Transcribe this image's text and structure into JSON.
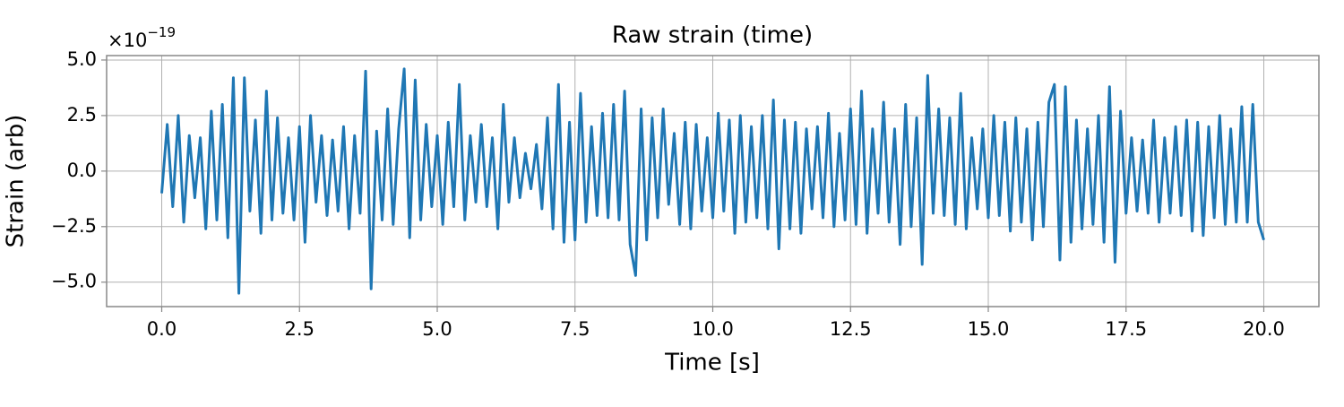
{
  "chart_data": {
    "type": "line",
    "title": "Raw strain (time)",
    "x_label": "Time [s]",
    "y_label": "Strain (arb)",
    "y_offset": {
      "base": "×10",
      "exponent": "−19"
    },
    "color": "#1f77b4",
    "grid": true,
    "xlim": [
      -1.0,
      21.0
    ],
    "ylim": [
      -6.1,
      5.2
    ],
    "xticks": [
      {
        "value": 0,
        "label": "0.0"
      },
      2.5,
      {
        "value": 5,
        "label": "5.0"
      },
      7.5,
      {
        "value": 10,
        "label": "10.0"
      },
      12.5,
      {
        "value": 15,
        "label": "15.0"
      },
      17.5,
      {
        "value": 20,
        "label": "20.0"
      }
    ],
    "yticks": [
      {
        "value": -5,
        "label": "−5.0"
      },
      {
        "value": -2.5,
        "label": "−2.5"
      },
      {
        "value": 0,
        "label": "0.0"
      },
      2.5,
      {
        "value": 5,
        "label": "5.0"
      }
    ],
    "x": [
      0,
      0.1,
      0.2,
      0.3,
      0.4,
      0.5,
      0.6,
      0.7,
      0.8,
      0.9,
      1,
      1.1,
      1.2,
      1.3,
      1.4,
      1.5,
      1.6,
      1.7,
      1.8,
      1.9,
      2,
      2.1,
      2.2,
      2.3,
      2.4,
      2.5,
      2.6,
      2.7,
      2.8,
      2.9,
      3,
      3.1,
      3.2,
      3.3,
      3.4,
      3.5,
      3.6,
      3.7,
      3.8,
      3.9,
      4,
      4.1,
      4.2,
      4.3,
      4.4,
      4.5,
      4.6,
      4.7,
      4.8,
      4.9,
      5,
      5.1,
      5.2,
      5.3,
      5.4,
      5.5,
      5.6,
      5.7,
      5.8,
      5.9,
      6,
      6.1,
      6.2,
      6.3,
      6.4,
      6.5,
      6.6,
      6.7,
      6.8,
      6.9,
      7,
      7.1,
      7.2,
      7.3,
      7.4,
      7.5,
      7.6,
      7.7,
      7.8,
      7.9,
      8,
      8.1,
      8.2,
      8.3,
      8.4,
      8.5,
      8.6,
      8.7,
      8.8,
      8.9,
      9,
      9.1,
      9.2,
      9.3,
      9.4,
      9.5,
      9.6,
      9.7,
      9.8,
      9.9,
      10,
      10.1,
      10.2,
      10.3,
      10.4,
      10.5,
      10.6,
      10.7,
      10.8,
      10.9,
      11,
      11.1,
      11.2,
      11.3,
      11.4,
      11.5,
      11.6,
      11.7,
      11.8,
      11.9,
      12,
      12.1,
      12.2,
      12.3,
      12.4,
      12.5,
      12.6,
      12.7,
      12.8,
      12.9,
      13,
      13.1,
      13.2,
      13.3,
      13.4,
      13.5,
      13.6,
      13.7,
      13.8,
      13.9,
      14,
      14.1,
      14.2,
      14.3,
      14.4,
      14.5,
      14.6,
      14.7,
      14.8,
      14.9,
      15,
      15.1,
      15.2,
      15.3,
      15.4,
      15.5,
      15.6,
      15.7,
      15.8,
      15.9,
      16,
      16.1,
      16.2,
      16.3,
      16.4,
      16.5,
      16.6,
      16.7,
      16.8,
      16.9,
      17,
      17.1,
      17.2,
      17.3,
      17.4,
      17.5,
      17.6,
      17.7,
      17.8,
      17.9,
      18,
      18.1,
      18.2,
      18.3,
      18.4,
      18.5,
      18.6,
      18.7,
      18.8,
      18.9,
      19,
      19.1,
      19.2,
      19.3,
      19.4,
      19.5,
      19.6,
      19.7,
      19.8,
      19.9,
      20
    ],
    "values": [
      -1.0,
      2.1,
      -1.6,
      2.5,
      -2.3,
      1.6,
      -1.2,
      1.5,
      -2.6,
      2.7,
      -2.2,
      3.0,
      -3.0,
      4.2,
      -5.5,
      4.2,
      -1.8,
      2.3,
      -2.8,
      3.6,
      -2.2,
      2.4,
      -1.9,
      1.5,
      -2.2,
      2.0,
      -3.2,
      2.5,
      -1.4,
      1.6,
      -2.0,
      1.4,
      -1.8,
      2.0,
      -2.6,
      1.6,
      -1.9,
      4.5,
      -5.3,
      1.8,
      -2.2,
      2.8,
      -2.4,
      1.9,
      4.6,
      -3.0,
      4.1,
      -2.2,
      2.1,
      -1.6,
      1.6,
      -2.4,
      2.2,
      -1.6,
      3.9,
      -2.2,
      1.6,
      -1.4,
      2.1,
      -1.6,
      1.5,
      -2.6,
      3.0,
      -1.4,
      1.5,
      -1.2,
      0.8,
      -0.8,
      1.2,
      -1.7,
      2.4,
      -2.6,
      3.9,
      -3.2,
      2.2,
      -3.1,
      3.5,
      -2.3,
      2.0,
      -2.0,
      2.6,
      -2.1,
      3.0,
      -2.2,
      3.6,
      -3.3,
      -4.7,
      2.8,
      -3.1,
      2.4,
      -2.1,
      2.8,
      -1.5,
      1.7,
      -2.4,
      2.2,
      -2.6,
      2.1,
      -1.8,
      1.5,
      -2.1,
      2.6,
      -1.8,
      2.3,
      -2.8,
      2.5,
      -2.3,
      2.0,
      -2.1,
      2.5,
      -2.6,
      3.2,
      -3.5,
      2.3,
      -2.6,
      2.2,
      -2.8,
      1.9,
      -1.7,
      2.0,
      -2.1,
      2.6,
      -2.5,
      1.7,
      -2.2,
      2.8,
      -2.4,
      3.6,
      -2.8,
      1.9,
      -1.9,
      3.1,
      -2.3,
      1.9,
      -3.3,
      3.0,
      -2.5,
      2.4,
      -4.2,
      4.3,
      -1.9,
      2.8,
      -2.0,
      2.4,
      -2.4,
      3.5,
      -2.6,
      1.5,
      -1.7,
      1.9,
      -2.1,
      2.5,
      -2.0,
      2.2,
      -2.7,
      2.4,
      -2.3,
      1.9,
      -3.1,
      2.2,
      -2.5,
      3.1,
      3.9,
      -4.0,
      3.8,
      -3.2,
      2.3,
      -2.6,
      1.9,
      -2.4,
      2.5,
      -3.2,
      3.8,
      -4.1,
      2.7,
      -1.9,
      1.5,
      -1.8,
      1.4,
      -1.9,
      2.3,
      -2.3,
      1.5,
      -1.9,
      2.0,
      -2.0,
      2.3,
      -2.7,
      2.2,
      -2.9,
      2.0,
      -2.1,
      2.5,
      -2.4,
      1.9,
      -2.3,
      2.9,
      -2.3,
      3.0,
      -2.3,
      -3.1
    ]
  }
}
